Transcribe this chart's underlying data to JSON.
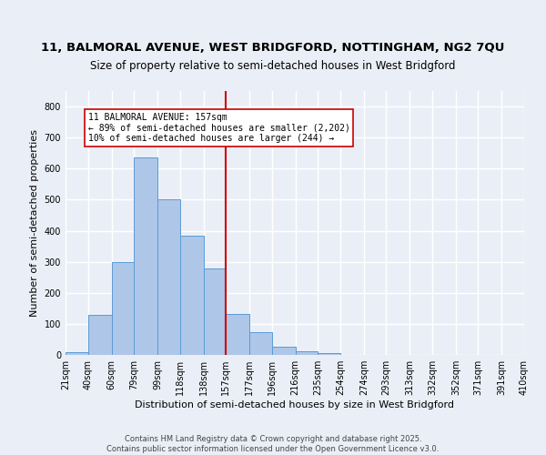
{
  "title1": "11, BALMORAL AVENUE, WEST BRIDGFORD, NOTTINGHAM, NG2 7QU",
  "title2": "Size of property relative to semi-detached houses in West Bridgford",
  "xlabel": "Distribution of semi-detached houses by size in West Bridgford",
  "ylabel": "Number of semi-detached properties",
  "footer1": "Contains HM Land Registry data © Crown copyright and database right 2025.",
  "footer2": "Contains public sector information licensed under the Open Government Licence v3.0.",
  "bin_labels": [
    "21sqm",
    "40sqm",
    "60sqm",
    "79sqm",
    "99sqm",
    "118sqm",
    "138sqm",
    "157sqm",
    "177sqm",
    "196sqm",
    "216sqm",
    "235sqm",
    "254sqm",
    "274sqm",
    "293sqm",
    "313sqm",
    "332sqm",
    "352sqm",
    "371sqm",
    "391sqm",
    "410sqm"
  ],
  "bar_values": [
    10,
    128,
    300,
    635,
    500,
    383,
    279,
    131,
    72,
    25,
    12,
    5,
    0,
    0,
    0,
    0,
    0,
    0,
    0,
    0
  ],
  "bin_edges": [
    21,
    40,
    60,
    79,
    99,
    118,
    138,
    157,
    177,
    196,
    216,
    235,
    254,
    274,
    293,
    313,
    332,
    352,
    371,
    391,
    410
  ],
  "bar_color": "#aec6e8",
  "bar_edge_color": "#5b9bd5",
  "vline_x": 157,
  "vline_color": "#cc0000",
  "annotation_title": "11 BALMORAL AVENUE: 157sqm",
  "annotation_line1": "← 89% of semi-detached houses are smaller (2,202)",
  "annotation_line2": "10% of semi-detached houses are larger (244) →",
  "annotation_box_color": "#ffffff",
  "annotation_box_edge": "#cc0000",
  "ylim": [
    0,
    850
  ],
  "yticks": [
    0,
    100,
    200,
    300,
    400,
    500,
    600,
    700,
    800
  ],
  "bg_color": "#eaeff7",
  "plot_bg_color": "#eaeff7",
  "grid_color": "#ffffff",
  "title1_fontsize": 9.5,
  "title2_fontsize": 8.5,
  "footer_fontsize": 6.0,
  "tick_fontsize": 7,
  "label_fontsize": 8,
  "annot_fontsize": 7.0
}
